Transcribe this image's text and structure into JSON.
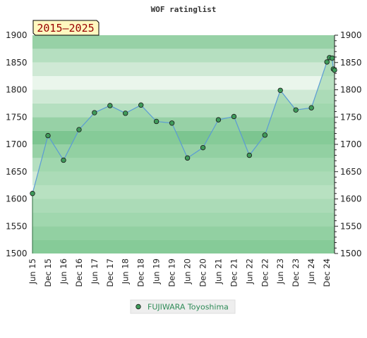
{
  "chart_data": {
    "type": "area",
    "title": "WOF ratinglist",
    "period_badge": "2015–2025",
    "xlabel": "",
    "ylabel": "",
    "ylim": [
      1500,
      1900
    ],
    "y_ticks": [
      1500,
      1550,
      1600,
      1650,
      1700,
      1750,
      1800,
      1850,
      1900
    ],
    "y_axis_right": true,
    "x_range": [
      "2015-06-01",
      "2025-03-01"
    ],
    "x_ticks": [
      {
        "label": "Jun 15",
        "date": "2015-06-01"
      },
      {
        "label": "Dec 15",
        "date": "2015-12-01"
      },
      {
        "label": "Jun 16",
        "date": "2016-06-01"
      },
      {
        "label": "Dec 16",
        "date": "2016-12-01"
      },
      {
        "label": "Jun 17",
        "date": "2017-06-01"
      },
      {
        "label": "Dec 17",
        "date": "2017-12-01"
      },
      {
        "label": "Jun 18",
        "date": "2018-06-01"
      },
      {
        "label": "Dec 18",
        "date": "2018-12-01"
      },
      {
        "label": "Jun 19",
        "date": "2019-06-01"
      },
      {
        "label": "Dec 19",
        "date": "2019-12-01"
      },
      {
        "label": "Jun 20",
        "date": "2020-06-01"
      },
      {
        "label": "Dec 20",
        "date": "2020-12-01"
      },
      {
        "label": "Jun 21",
        "date": "2021-06-01"
      },
      {
        "label": "Dec 21",
        "date": "2021-12-01"
      },
      {
        "label": "Jun 22",
        "date": "2022-06-01"
      },
      {
        "label": "Dec 22",
        "date": "2022-12-01"
      },
      {
        "label": "Jun 23",
        "date": "2023-06-01"
      },
      {
        "label": "Dec 23",
        "date": "2023-12-01"
      },
      {
        "label": "Jun 24",
        "date": "2024-06-01"
      },
      {
        "label": "Dec 24",
        "date": "2024-12-01"
      }
    ],
    "series": [
      {
        "name": "FUJIWARA Toyoshima",
        "color": "#5b9bd5",
        "marker_fill": "#3f9a5a",
        "fill": "#8ecf9f",
        "points": [
          {
            "x": "2015-06-01",
            "y": 1610
          },
          {
            "x": "2015-12-01",
            "y": 1716
          },
          {
            "x": "2016-06-01",
            "y": 1671
          },
          {
            "x": "2016-12-01",
            "y": 1727
          },
          {
            "x": "2017-06-01",
            "y": 1758
          },
          {
            "x": "2017-12-01",
            "y": 1771
          },
          {
            "x": "2018-06-01",
            "y": 1757
          },
          {
            "x": "2018-12-01",
            "y": 1772
          },
          {
            "x": "2019-06-01",
            "y": 1742
          },
          {
            "x": "2019-12-01",
            "y": 1739
          },
          {
            "x": "2020-06-01",
            "y": 1675
          },
          {
            "x": "2020-12-01",
            "y": 1694
          },
          {
            "x": "2021-06-01",
            "y": 1745
          },
          {
            "x": "2021-12-01",
            "y": 1751
          },
          {
            "x": "2022-06-01",
            "y": 1680
          },
          {
            "x": "2022-12-01",
            "y": 1717
          },
          {
            "x": "2023-06-01",
            "y": 1799
          },
          {
            "x": "2023-12-01",
            "y": 1763
          },
          {
            "x": "2024-06-01",
            "y": 1767
          },
          {
            "x": "2024-12-01",
            "y": 1851
          },
          {
            "x": "2025-01-01",
            "y": 1859
          },
          {
            "x": "2025-02-01",
            "y": 1858
          },
          {
            "x": "2025-02-15",
            "y": 1838
          },
          {
            "x": "2025-03-01",
            "y": 1836
          }
        ]
      }
    ],
    "band_colors": [
      "#7cc590",
      "#97d1a6",
      "#b5dfc0",
      "#cfe9d5",
      "#eaf6ec"
    ],
    "grid": false,
    "legend": "bottom-center"
  }
}
